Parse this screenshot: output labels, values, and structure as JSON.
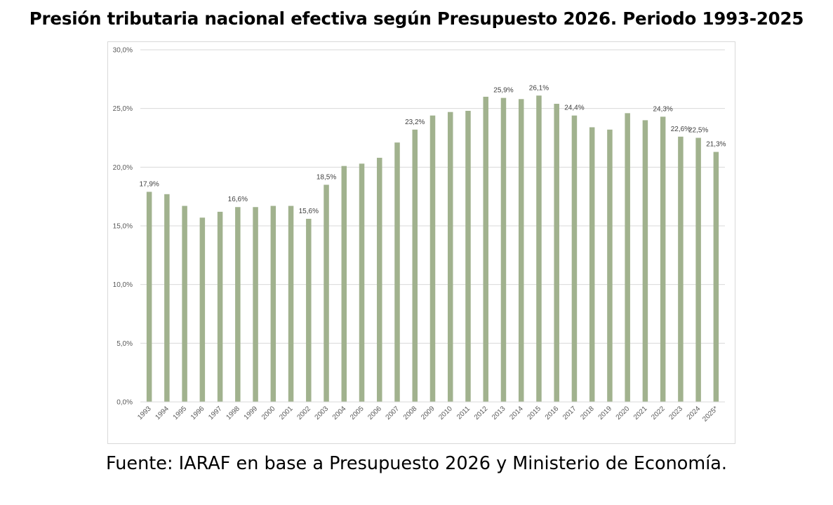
{
  "chart_data": {
    "type": "bar",
    "title": "Presión tributaria nacional efectiva según Presupuesto 2026. Periodo 1993-2025",
    "xlabel": "",
    "ylabel": "",
    "ylim": [
      0,
      30
    ],
    "yticks": [
      0,
      5,
      10,
      15,
      20,
      25,
      30
    ],
    "ytick_labels": [
      "0,0%",
      "5,0%",
      "10,0%",
      "15,0%",
      "20,0%",
      "25,0%",
      "30,0%"
    ],
    "grid": true,
    "legend": "none",
    "bar_color": "#a1b28e",
    "categories": [
      "1993",
      "1994",
      "1995",
      "1996",
      "1997",
      "1998",
      "1999",
      "2000",
      "2001",
      "2002",
      "2003",
      "2004",
      "2005",
      "2006",
      "2007",
      "2008",
      "2009",
      "2010",
      "2011",
      "2012",
      "2013",
      "2014",
      "2015",
      "2016",
      "2017",
      "2018",
      "2019",
      "2020",
      "2021",
      "2022",
      "2023",
      "2024",
      "2025*"
    ],
    "values": [
      17.9,
      17.7,
      16.7,
      15.7,
      16.2,
      16.6,
      16.6,
      16.7,
      16.7,
      15.6,
      18.5,
      20.1,
      20.3,
      20.8,
      22.1,
      23.2,
      24.4,
      24.7,
      24.8,
      26.0,
      25.9,
      25.8,
      26.1,
      25.4,
      24.4,
      23.4,
      23.2,
      24.6,
      24.0,
      24.3,
      22.6,
      22.5,
      21.3
    ],
    "data_labels": [
      {
        "category": "1993",
        "text": "17,9%"
      },
      {
        "category": "1998",
        "text": "16,6%"
      },
      {
        "category": "2002",
        "text": "15,6%"
      },
      {
        "category": "2003",
        "text": "18,5%"
      },
      {
        "category": "2008",
        "text": "23,2%"
      },
      {
        "category": "2013",
        "text": "25,9%"
      },
      {
        "category": "2015",
        "text": "26,1%"
      },
      {
        "category": "2017",
        "text": "24,4%"
      },
      {
        "category": "2022",
        "text": "24,3%"
      },
      {
        "category": "2023",
        "text": "22,6%"
      },
      {
        "category": "2024",
        "text": "22,5%"
      },
      {
        "category": "2025*",
        "text": "21,3%"
      }
    ]
  },
  "footer": "Fuente: IARAF en base a Presupuesto 2026 y Ministerio de Economía."
}
